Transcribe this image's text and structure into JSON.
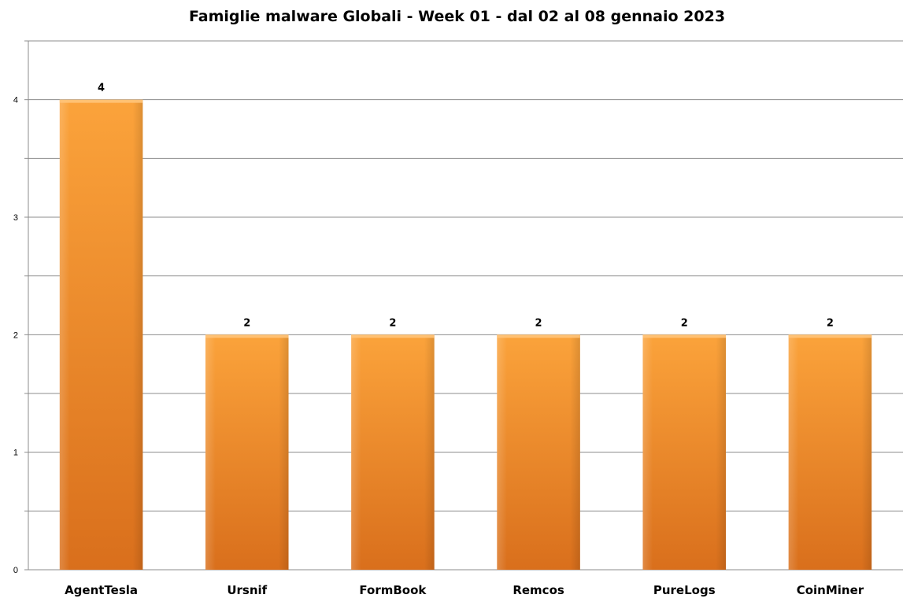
{
  "chart_data": {
    "type": "bar",
    "title": "Famiglie malware Globali - Week 01 - dal 02 al 08 gennaio 2023",
    "categories": [
      "AgentTesla",
      "Ursnif",
      "FormBook",
      "Remcos",
      "PureLogs",
      "CoinMiner"
    ],
    "values": [
      4,
      2,
      2,
      2,
      2,
      2
    ],
    "ylim": [
      0,
      4.5
    ],
    "yticks": [
      0,
      1,
      2,
      3,
      4
    ],
    "grid": true,
    "data_labels": true,
    "bar_color": "#f39a3a"
  }
}
